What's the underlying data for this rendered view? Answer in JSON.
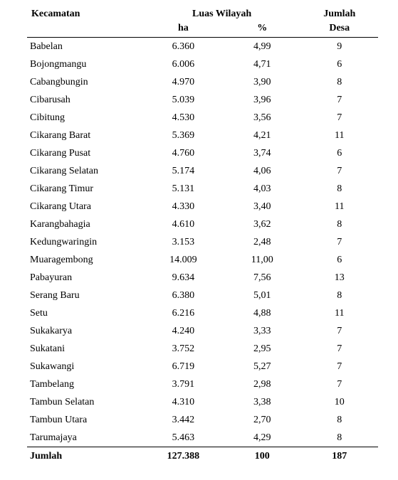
{
  "table": {
    "headers": {
      "kecamatan": "Kecamatan",
      "luas_wilayah": "Luas Wilayah",
      "jumlah": "Jumlah",
      "ha": "ha",
      "pct": "%",
      "desa": "Desa"
    },
    "rows": [
      {
        "kec": "Babelan",
        "ha": "6.360",
        "pct": "4,99",
        "desa": "9"
      },
      {
        "kec": "Bojongmangu",
        "ha": "6.006",
        "pct": "4,71",
        "desa": "6"
      },
      {
        "kec": "Cabangbungin",
        "ha": "4.970",
        "pct": "3,90",
        "desa": "8"
      },
      {
        "kec": "Cibarusah",
        "ha": "5.039",
        "pct": "3,96",
        "desa": "7"
      },
      {
        "kec": "Cibitung",
        "ha": "4.530",
        "pct": "3,56",
        "desa": "7"
      },
      {
        "kec": "Cikarang Barat",
        "ha": "5.369",
        "pct": "4,21",
        "desa": "11"
      },
      {
        "kec": "Cikarang Pusat",
        "ha": "4.760",
        "pct": "3,74",
        "desa": "6"
      },
      {
        "kec": "Cikarang Selatan",
        "ha": "5.174",
        "pct": "4,06",
        "desa": "7"
      },
      {
        "kec": "Cikarang Timur",
        "ha": "5.131",
        "pct": "4,03",
        "desa": "8"
      },
      {
        "kec": "Cikarang Utara",
        "ha": "4.330",
        "pct": "3,40",
        "desa": "11"
      },
      {
        "kec": "Karangbahagia",
        "ha": "4.610",
        "pct": "3,62",
        "desa": "8"
      },
      {
        "kec": "Kedungwaringin",
        "ha": "3.153",
        "pct": "2,48",
        "desa": "7"
      },
      {
        "kec": "Muaragembong",
        "ha": "14.009",
        "pct": "11,00",
        "desa": "6"
      },
      {
        "kec": "Pabayuran",
        "ha": "9.634",
        "pct": "7,56",
        "desa": "13"
      },
      {
        "kec": "Serang Baru",
        "ha": "6.380",
        "pct": "5,01",
        "desa": "8"
      },
      {
        "kec": "Setu",
        "ha": "6.216",
        "pct": "4,88",
        "desa": "11"
      },
      {
        "kec": "Sukakarya",
        "ha": "4.240",
        "pct": "3,33",
        "desa": "7"
      },
      {
        "kec": "Sukatani",
        "ha": "3.752",
        "pct": "2,95",
        "desa": "7"
      },
      {
        "kec": "Sukawangi",
        "ha": "6.719",
        "pct": "5,27",
        "desa": "7"
      },
      {
        "kec": "Tambelang",
        "ha": "3.791",
        "pct": "2,98",
        "desa": "7"
      },
      {
        "kec": "Tambun Selatan",
        "ha": "4.310",
        "pct": "3,38",
        "desa": "10"
      },
      {
        "kec": "Tambun Utara",
        "ha": "3.442",
        "pct": "2,70",
        "desa": "8"
      },
      {
        "kec": "Tarumajaya",
        "ha": "5.463",
        "pct": "4,29",
        "desa": "8"
      }
    ],
    "total": {
      "label": "Jumlah",
      "ha": "127.388",
      "pct": "100",
      "desa": "187"
    }
  }
}
